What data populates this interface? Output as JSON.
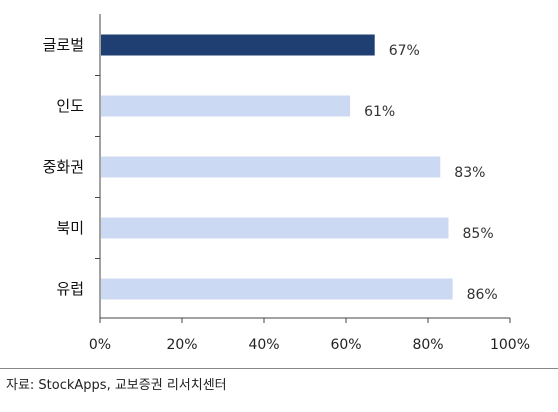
{
  "chart_data": {
    "type": "bar",
    "orientation": "horizontal",
    "categories": [
      "글로벌",
      "인도",
      "중화권",
      "북미",
      "유럽"
    ],
    "values": [
      67,
      61,
      83,
      85,
      86
    ],
    "value_labels": [
      "67%",
      "61%",
      "83%",
      "85%",
      "86%"
    ],
    "xlim": [
      0,
      100
    ],
    "xticks": [
      0,
      20,
      40,
      60,
      80,
      100
    ],
    "xtick_labels": [
      "0%",
      "20%",
      "40%",
      "60%",
      "80%",
      "100%"
    ],
    "grid": false,
    "colors": {
      "highlight": "#1f3f73",
      "default": "#ccd9f2"
    },
    "highlight_index": 0
  },
  "source": "자료: StockApps, 교보증권 리서치센터"
}
